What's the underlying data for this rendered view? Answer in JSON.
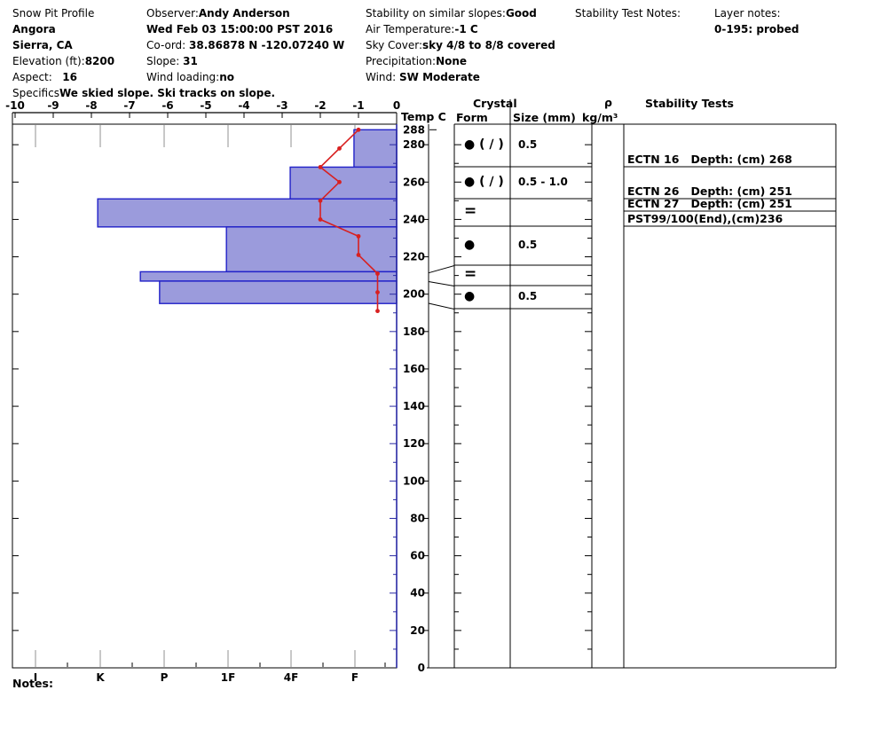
{
  "page_title": "Snow Pit Profile",
  "colors": {
    "bar_fill": "#9b9bdc",
    "bar_border": "#2121c8",
    "temp_line": "#d82020",
    "grid_gray": "#909090",
    "axis_blue": "#2929a3"
  },
  "header": {
    "columns": [
      {
        "name": "site",
        "rows": [
          {
            "label": "Snow Pit Profile",
            "value": ""
          },
          {
            "label": "",
            "value": "Angora"
          },
          {
            "label": "",
            "value": "Sierra, CA"
          },
          {
            "label": "Elevation (ft):",
            "value": "8200"
          },
          {
            "label": "Aspect:   ",
            "value": "16"
          },
          {
            "label": "Specifics",
            "value": "We skied slope. Ski tracks on slope."
          }
        ]
      },
      {
        "name": "observer",
        "rows": [
          {
            "label": "Observer:",
            "value": "Andy Anderson"
          },
          {
            "label": "",
            "value": "Wed Feb 03 15:00:00 PST 2016"
          },
          {
            "label": "Co-ord: ",
            "value": "38.86878 N -120.07240 W"
          },
          {
            "label": "Slope: ",
            "value": "31"
          },
          {
            "label": "Wind loading:",
            "value": "no"
          }
        ]
      },
      {
        "name": "conditions",
        "rows": [
          {
            "label": "Stability on similar slopes:",
            "value": "Good"
          },
          {
            "label": "Air Temperature:",
            "value": "-1 C"
          },
          {
            "label": "Sky Cover:",
            "value": "sky 4/8 to 8/8 covered"
          },
          {
            "label": "Precipitation:",
            "value": "None"
          },
          {
            "label": "Wind: ",
            "value": "SW Moderate"
          }
        ]
      },
      {
        "name": "test-notes",
        "rows": [
          {
            "label": "Stability Test Notes:",
            "value": ""
          }
        ]
      },
      {
        "name": "layer-notes",
        "rows": [
          {
            "label": "Layer notes:",
            "value": ""
          },
          {
            "label": "",
            "value": "0-195: probed"
          }
        ]
      }
    ]
  },
  "panel": {
    "temp_c": "Temp C",
    "crystal": "Crystal",
    "form": "Form",
    "size": "Size (mm)",
    "rho": "ρ",
    "kg": "kg/m³",
    "stability": "Stability Tests"
  },
  "footer": {
    "notes_label": "Notes:"
  },
  "chart_data": {
    "type": "bar",
    "title": "Snow pit hardness profile with temperature curve",
    "depth_axis": {
      "unit": "cm",
      "max": 288,
      "ticks": [
        288,
        280,
        260,
        240,
        220,
        200,
        180,
        160,
        140,
        120,
        100,
        80,
        60,
        40,
        20,
        0
      ]
    },
    "temp_axis": {
      "label": "Temp C",
      "unit": "C",
      "ticks": [
        -10,
        -9,
        -8,
        -7,
        -6,
        -5,
        -4,
        -3,
        -2,
        -1,
        0
      ],
      "range": [
        -10,
        0
      ]
    },
    "hardness_axis": {
      "labels": [
        "I",
        "K",
        "P",
        "1F",
        "4F",
        "F"
      ]
    },
    "layers": [
      {
        "top_cm": 288,
        "bottom_cm": 268,
        "hardness": "F",
        "grain_form": "● ( ∕ )",
        "grain_size_mm": "0.5",
        "extent_frac": 0.111
      },
      {
        "top_cm": 268,
        "bottom_cm": 251,
        "hardness": "4F",
        "grain_form": "● ( ∕ )",
        "grain_size_mm": "0.5 - 1.0",
        "extent_frac": 0.277
      },
      {
        "top_cm": 251,
        "bottom_cm": 236,
        "hardness": "K",
        "grain_form": "=",
        "grain_size_mm": "",
        "extent_frac": 0.778
      },
      {
        "top_cm": 236,
        "bottom_cm": 212,
        "hardness": "1F",
        "grain_form": "●",
        "grain_size_mm": "0.5",
        "extent_frac": 0.443
      },
      {
        "top_cm": 212,
        "bottom_cm": 207,
        "hardness": "K-P",
        "grain_form": "=",
        "grain_size_mm": "",
        "extent_frac": 0.667
      },
      {
        "top_cm": 207,
        "bottom_cm": 195,
        "hardness": "P",
        "grain_form": "●",
        "grain_size_mm": "0.5",
        "extent_frac": 0.617
      }
    ],
    "temperature_profile": [
      {
        "depth_cm": 288,
        "temp_c": -1.0
      },
      {
        "depth_cm": 278,
        "temp_c": -1.5
      },
      {
        "depth_cm": 268,
        "temp_c": -2.0
      },
      {
        "depth_cm": 260,
        "temp_c": -1.5
      },
      {
        "depth_cm": 250,
        "temp_c": -2.0
      },
      {
        "depth_cm": 240,
        "temp_c": -2.0
      },
      {
        "depth_cm": 231,
        "temp_c": -1.0
      },
      {
        "depth_cm": 221,
        "temp_c": -1.0
      },
      {
        "depth_cm": 211,
        "temp_c": -0.5
      },
      {
        "depth_cm": 201,
        "temp_c": -0.5
      },
      {
        "depth_cm": 191,
        "temp_c": -0.5
      }
    ],
    "stability_tests": [
      {
        "text": "ECTN 16   Depth: (cm) 268"
      },
      {
        "text": "ECTN 26   Depth: (cm) 251"
      },
      {
        "text": "ECTN 27   Depth: (cm) 251"
      },
      {
        "text": "PST99/100(End),(cm)236"
      }
    ]
  }
}
